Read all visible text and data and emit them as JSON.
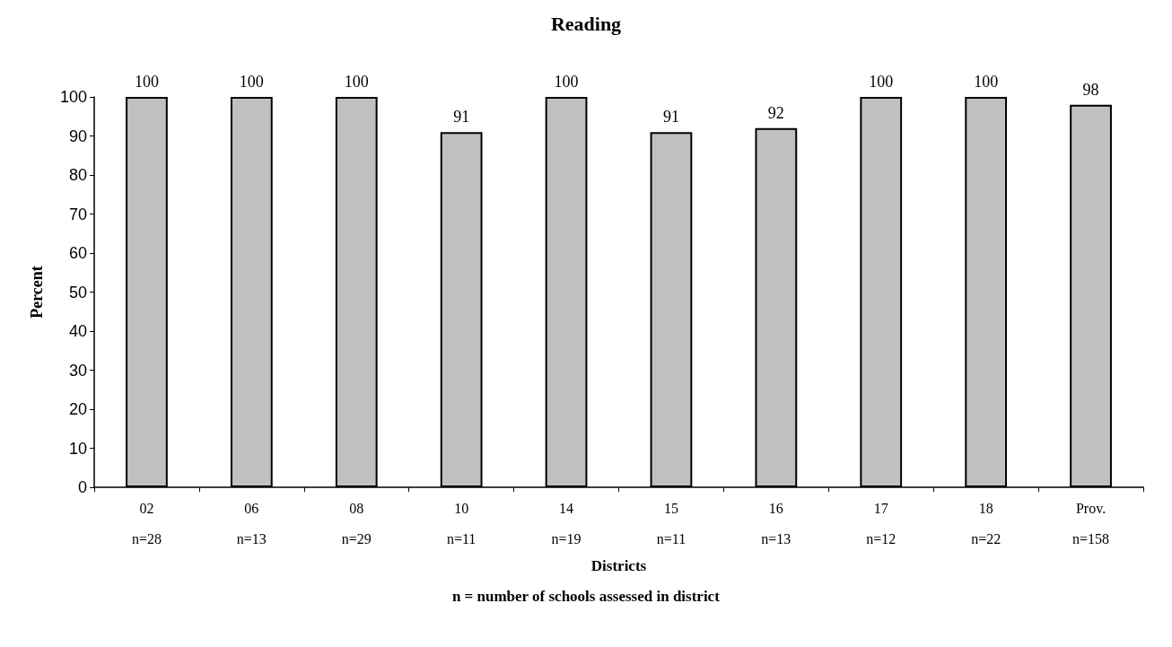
{
  "chart_data": {
    "type": "bar",
    "title": "Reading",
    "xlabel": "Districts",
    "ylabel": "Percent",
    "annotations": [
      "n = number of schools assessed in district"
    ],
    "categories": [
      "02\nn=28",
      "06\nn=13",
      "08\nn=29",
      "10\nn=11",
      "14\nn=19",
      "15\nn=11",
      "16\nn=13",
      "17\nn=12",
      "18\nn=22",
      "Prov.\nn=158"
    ],
    "values": [
      100,
      100,
      100,
      91,
      100,
      91,
      92,
      100,
      100,
      98
    ],
    "color": "#c0c0c0",
    "ylim": [
      0,
      100
    ],
    "yticks": [
      0,
      10,
      20,
      30,
      40,
      50,
      60,
      70,
      80,
      90,
      100
    ],
    "grid": false,
    "data_labels": true
  }
}
